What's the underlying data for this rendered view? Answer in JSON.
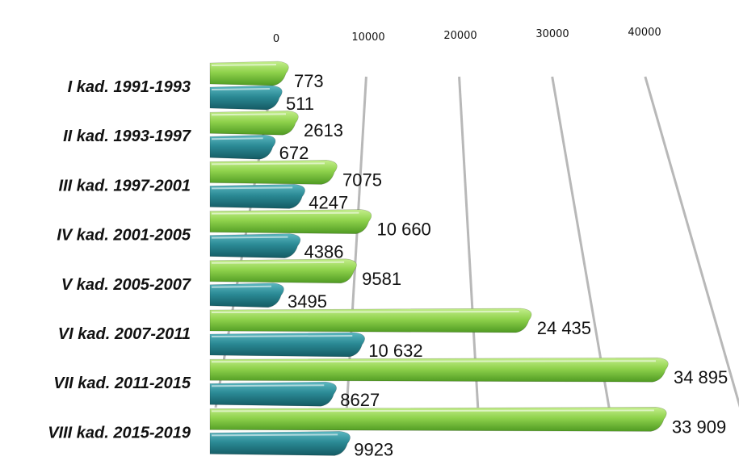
{
  "chart_data": {
    "type": "bar",
    "orientation": "horizontal",
    "three_d": true,
    "categories": [
      "I kad. 1991-1993",
      "II kad. 1993-1997",
      "III kad. 1997-2001",
      "IV kad. 2001-2005",
      "V kad. 2005-2007",
      "VI kad. 2007-2011",
      "VII kad. 2011-2015",
      "VIII kad. 2015-2019"
    ],
    "series": [
      {
        "color": "#7cc53f",
        "values": [
          773,
          2613,
          7075,
          10660,
          9581,
          24435,
          34895,
          33909
        ],
        "labels": [
          "773",
          "2613",
          "7075",
          "10 660",
          "9581",
          "24 435",
          "34 895",
          "33 909"
        ]
      },
      {
        "color": "#2b8a95",
        "values": [
          511,
          672,
          4247,
          4386,
          3495,
          10632,
          8627,
          9923
        ],
        "labels": [
          "511",
          "672",
          "4247",
          "4386",
          "3495",
          "10 632",
          "8627",
          "9923"
        ]
      }
    ],
    "x_ticks": [
      0,
      10000,
      20000,
      30000,
      40000
    ],
    "x_tick_labels": [
      "0",
      "10000",
      "20000",
      "30000",
      "40000"
    ],
    "xlim": [
      0,
      40000
    ],
    "axis_position": "top",
    "grid": true,
    "legend": "none"
  }
}
